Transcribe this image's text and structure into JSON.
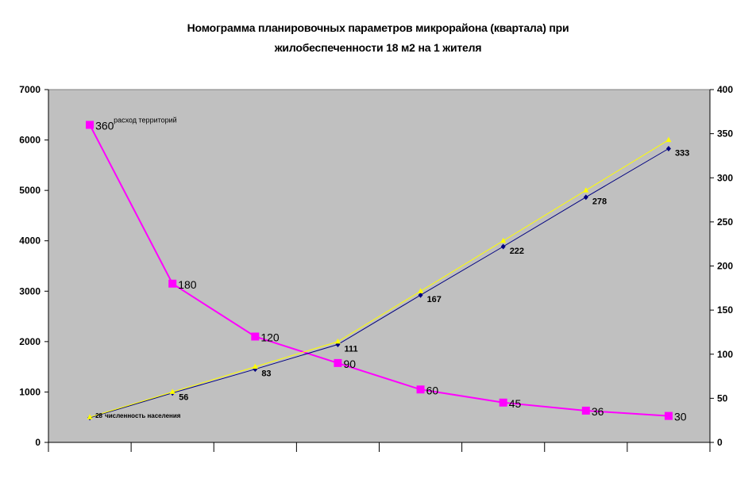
{
  "chart_data": {
    "type": "line",
    "title_line1": "Номограмма планировочных параметров микрорайона (квартала) при",
    "title_line2": "жилобеспеченности  18 м2 на 1 жителя",
    "y_left": {
      "min": 0,
      "max": 7000,
      "ticks": [
        "0",
        "1000",
        "2000",
        "3000",
        "4000",
        "5000",
        "6000",
        "7000"
      ]
    },
    "y_right": {
      "min": 0,
      "max": 400,
      "ticks": [
        "0",
        "50",
        "100",
        "150",
        "200",
        "250",
        "300",
        "350",
        "400"
      ]
    },
    "x_count": 8,
    "grid": false,
    "series": [
      {
        "axis": "left",
        "color": "#ff00ff",
        "marker": "square",
        "values": [
          6300,
          3150,
          2100,
          1575,
          1050,
          790,
          630,
          525
        ],
        "labels": [
          "360",
          "180",
          "120",
          "90",
          "60",
          "45",
          "36",
          "30"
        ]
      },
      {
        "axis": "right",
        "color": "#000080",
        "marker": "diamond",
        "values": [
          28,
          56,
          83,
          111,
          167,
          222,
          278,
          333
        ],
        "labels": [
          "28",
          "56",
          "83",
          "111",
          "167",
          "222",
          "278",
          "333"
        ]
      },
      {
        "axis": "left",
        "color": "#ffff00",
        "marker": "triangle",
        "values": [
          500,
          1000,
          1500,
          2000,
          3000,
          4000,
          5000,
          6000
        ]
      }
    ],
    "annotations": {
      "territory": "расход территорий",
      "population": "численность населения"
    }
  }
}
